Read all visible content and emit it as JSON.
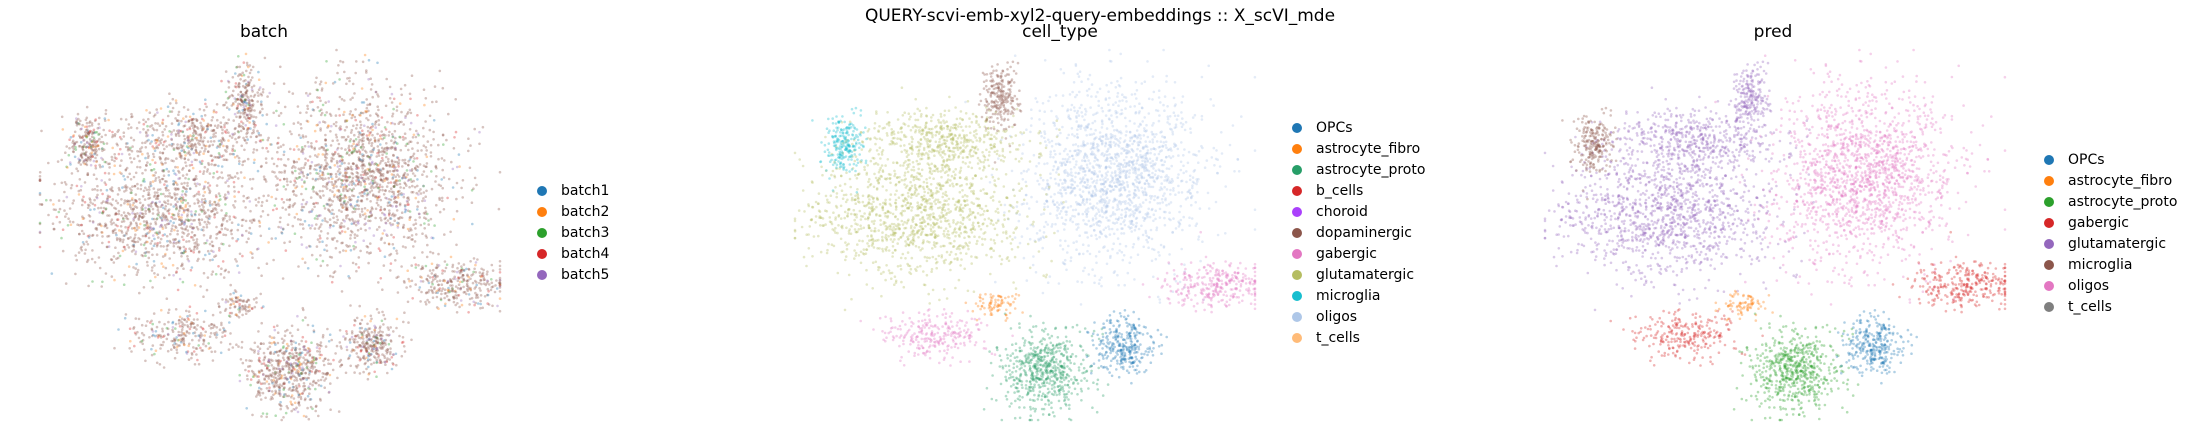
{
  "suptitle": "QUERY-scvi-emb-xyl2-query-embeddings :: X_scVI_mde",
  "chart_data": [
    {
      "type": "scatter",
      "title": "batch",
      "legend_position": "right",
      "categories": [
        {
          "label": "batch1",
          "color": "#1f77b4"
        },
        {
          "label": "batch2",
          "color": "#ff7f0e"
        },
        {
          "label": "batch3",
          "color": "#2ca02c"
        },
        {
          "label": "batch4",
          "color": "#d62728"
        },
        {
          "label": "batch5",
          "color": "#9467bd"
        }
      ]
    },
    {
      "type": "scatter",
      "title": "cell_type",
      "legend_position": "right",
      "categories": [
        {
          "label": "OPCs",
          "color": "#1f77b4"
        },
        {
          "label": "astrocyte_fibro",
          "color": "#ff7f0e"
        },
        {
          "label": "astrocyte_proto",
          "color": "#279e68"
        },
        {
          "label": "b_cells",
          "color": "#d62728"
        },
        {
          "label": "choroid",
          "color": "#aa40fc"
        },
        {
          "label": "dopaminergic",
          "color": "#8c564b"
        },
        {
          "label": "gabergic",
          "color": "#e377c2"
        },
        {
          "label": "glutamatergic",
          "color": "#b5bd61"
        },
        {
          "label": "microglia",
          "color": "#17becf"
        },
        {
          "label": "oligos",
          "color": "#aec7e8"
        },
        {
          "label": "t_cells",
          "color": "#ffbb78"
        }
      ]
    },
    {
      "type": "scatter",
      "title": "pred",
      "legend_position": "right",
      "categories": [
        {
          "label": "OPCs",
          "color": "#1f77b4"
        },
        {
          "label": "astrocyte_fibro",
          "color": "#ff7f0e"
        },
        {
          "label": "astrocyte_proto",
          "color": "#2ca02c"
        },
        {
          "label": "gabergic",
          "color": "#d62728"
        },
        {
          "label": "glutamatergic",
          "color": "#9467bd"
        },
        {
          "label": "microglia",
          "color": "#8c564b"
        },
        {
          "label": "oligos",
          "color": "#e377c2"
        },
        {
          "label": "t_cells",
          "color": "#7f7f7f"
        }
      ]
    }
  ]
}
